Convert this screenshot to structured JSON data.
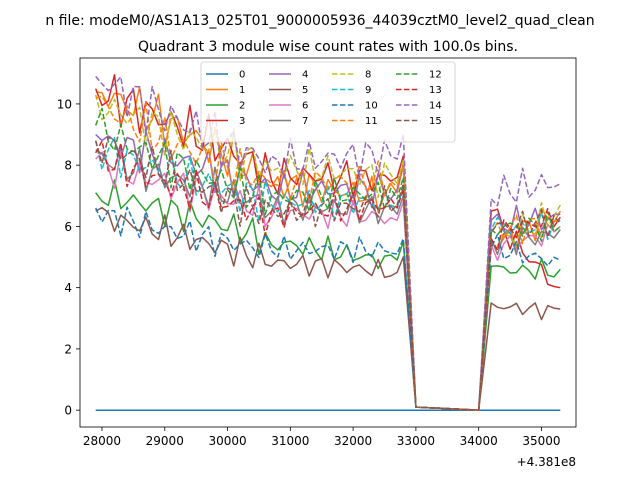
{
  "figure": {
    "suptitle": "n file: modeM0/AS1A13_025T01_9000005936_44039cztM0_level2_quad_clean",
    "offset_label": "+4.381e8"
  },
  "chart_data": {
    "type": "line",
    "title": "Quadrant 3 module wise count rates with 100.0s bins.",
    "xlabel": "",
    "ylabel": "",
    "xlim": [
      27650,
      35550
    ],
    "ylim": [
      -0.55,
      11.5
    ],
    "xticks": [
      28000,
      29000,
      30000,
      31000,
      32000,
      33000,
      34000,
      35000
    ],
    "yticks": [
      0,
      2,
      4,
      6,
      8,
      10
    ],
    "grid": false,
    "legend": {
      "placement": "top-center",
      "columns": 4
    },
    "segments": [
      {
        "x_start": 27900,
        "x_end": 30700,
        "step": 100
      },
      {
        "x_start": 30700,
        "x_end": 32700,
        "step": 100
      },
      {
        "x_start": 32700,
        "x_end": 32800,
        "step": 100
      },
      {
        "x_start": 32800,
        "x_end": 33000,
        "step": 100
      },
      {
        "x_start": 33000,
        "x_end": 34000,
        "step": 100
      },
      {
        "x_start": 34000,
        "x_end": 34200,
        "step": 100
      },
      {
        "x_start": 34200,
        "x_end": 35300,
        "step": 100
      }
    ],
    "series": [
      {
        "name": "0",
        "color": "#1f77b4",
        "dash": "solid",
        "values": [
          0,
          0,
          0,
          0,
          0,
          0,
          0,
          0
        ]
      },
      {
        "name": "1",
        "color": "#ff7f0e",
        "dash": "solid",
        "values": [
          10.4,
          7.3,
          7.1,
          8.0,
          0.1,
          0,
          5.5,
          6.5
        ]
      },
      {
        "name": "2",
        "color": "#2ca02c",
        "dash": "solid",
        "values": [
          7.1,
          5.4,
          4.9,
          5.5,
          0.1,
          0,
          4.7,
          4.6
        ]
      },
      {
        "name": "3",
        "color": "#d62728",
        "dash": "solid",
        "values": [
          10.5,
          7.5,
          7.6,
          8.3,
          0.1,
          0,
          6.5,
          4.0
        ]
      },
      {
        "name": "4",
        "color": "#9467bd",
        "dash": "solid",
        "values": [
          9.0,
          7.0,
          7.2,
          8.0,
          0.1,
          0,
          6.2,
          6.4
        ]
      },
      {
        "name": "5",
        "color": "#8c564b",
        "dash": "solid",
        "values": [
          6.5,
          4.7,
          4.5,
          5.0,
          0.1,
          0,
          3.5,
          3.3
        ]
      },
      {
        "name": "6",
        "color": "#e377c2",
        "dash": "solid",
        "values": [
          8.2,
          6.3,
          6.2,
          6.8,
          0.1,
          0,
          5.4,
          6.0
        ]
      },
      {
        "name": "7",
        "color": "#7f7f7f",
        "dash": "solid",
        "values": [
          8.5,
          6.5,
          6.4,
          7.0,
          0.1,
          0,
          5.6,
          5.9
        ]
      },
      {
        "name": "8",
        "color": "#bcbd22",
        "dash": "dashed",
        "values": [
          10.3,
          7.8,
          7.4,
          8.2,
          0.1,
          0,
          5.4,
          6.7
        ]
      },
      {
        "name": "9",
        "color": "#17becf",
        "dash": "dashed",
        "values": [
          8.8,
          6.7,
          6.6,
          7.3,
          0.1,
          0,
          5.9,
          6.2
        ]
      },
      {
        "name": "10",
        "color": "#1f77b4",
        "dash": "dashed",
        "values": [
          6.6,
          5.2,
          5.1,
          5.6,
          0.1,
          0,
          5.3,
          4.9
        ]
      },
      {
        "name": "11",
        "color": "#ff7f0e",
        "dash": "dashed",
        "values": [
          10.2,
          7.4,
          7.3,
          8.0,
          0.1,
          0,
          5.8,
          6.2
        ]
      },
      {
        "name": "12",
        "color": "#2ca02c",
        "dash": "dashed",
        "values": [
          9.3,
          7.0,
          6.9,
          7.6,
          0.1,
          0,
          5.9,
          6.0
        ]
      },
      {
        "name": "13",
        "color": "#d62728",
        "dash": "dashed",
        "values": [
          8.4,
          6.5,
          6.6,
          7.2,
          0.1,
          0,
          5.6,
          6.3
        ]
      },
      {
        "name": "14",
        "color": "#9467bd",
        "dash": "dashed",
        "values": [
          10.9,
          8.3,
          8.2,
          9.0,
          0.1,
          0,
          6.9,
          7.4
        ]
      },
      {
        "name": "15",
        "color": "#8c564b",
        "dash": "dashed",
        "values": [
          8.8,
          6.6,
          6.7,
          7.4,
          0.1,
          0,
          5.8,
          6.1
        ]
      }
    ]
  }
}
